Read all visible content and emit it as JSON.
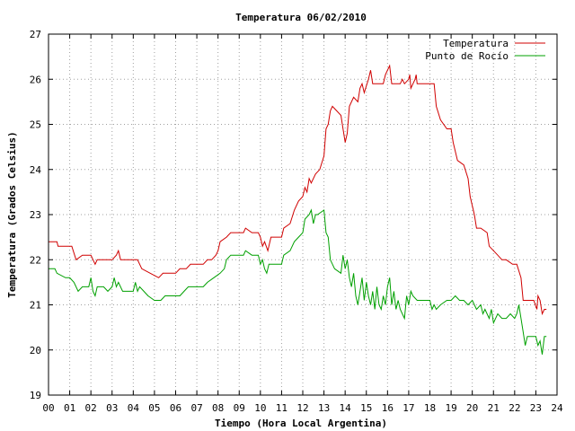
{
  "chart_data": {
    "type": "line",
    "title": "Temperatura 06/02/2010",
    "xlabel": "Tiempo (Hora Local Argentina)",
    "ylabel": "Temperatura (Grados Celsius)",
    "xlim": [
      0,
      24
    ],
    "ylim": [
      19,
      27
    ],
    "x_ticks": [
      "00",
      "01",
      "02",
      "03",
      "04",
      "05",
      "06",
      "07",
      "08",
      "09",
      "10",
      "11",
      "12",
      "13",
      "14",
      "15",
      "16",
      "17",
      "18",
      "19",
      "20",
      "21",
      "22",
      "23",
      "24"
    ],
    "y_ticks": [
      "19",
      "20",
      "21",
      "22",
      "23",
      "24",
      "25",
      "26",
      "27"
    ],
    "grid": true,
    "legend_position": "top-right",
    "series": [
      {
        "name": "Temperatura",
        "color": "#d00000",
        "points": [
          [
            0,
            22.4
          ],
          [
            0.4,
            22.4
          ],
          [
            0.45,
            22.3
          ],
          [
            1.1,
            22.3
          ],
          [
            1.3,
            22.0
          ],
          [
            1.6,
            22.1
          ],
          [
            2.0,
            22.1
          ],
          [
            2.2,
            21.9
          ],
          [
            2.3,
            22.0
          ],
          [
            3.0,
            22.0
          ],
          [
            3.2,
            22.1
          ],
          [
            3.3,
            22.2
          ],
          [
            3.4,
            22.0
          ],
          [
            4.2,
            22.0
          ],
          [
            4.4,
            21.8
          ],
          [
            4.8,
            21.7
          ],
          [
            5.2,
            21.6
          ],
          [
            5.4,
            21.7
          ],
          [
            6.0,
            21.7
          ],
          [
            6.2,
            21.8
          ],
          [
            6.5,
            21.8
          ],
          [
            6.7,
            21.9
          ],
          [
            7.3,
            21.9
          ],
          [
            7.5,
            22.0
          ],
          [
            7.7,
            22.0
          ],
          [
            7.9,
            22.1
          ],
          [
            8.0,
            22.2
          ],
          [
            8.1,
            22.4
          ],
          [
            8.4,
            22.5
          ],
          [
            8.6,
            22.6
          ],
          [
            9.2,
            22.6
          ],
          [
            9.3,
            22.7
          ],
          [
            9.6,
            22.6
          ],
          [
            9.9,
            22.6
          ],
          [
            10.0,
            22.5
          ],
          [
            10.1,
            22.3
          ],
          [
            10.2,
            22.4
          ],
          [
            10.35,
            22.2
          ],
          [
            10.5,
            22.5
          ],
          [
            11.0,
            22.5
          ],
          [
            11.1,
            22.7
          ],
          [
            11.4,
            22.8
          ],
          [
            11.6,
            23.1
          ],
          [
            11.8,
            23.3
          ],
          [
            12.0,
            23.4
          ],
          [
            12.1,
            23.6
          ],
          [
            12.2,
            23.5
          ],
          [
            12.3,
            23.8
          ],
          [
            12.4,
            23.7
          ],
          [
            12.6,
            23.9
          ],
          [
            12.8,
            24.0
          ],
          [
            13.0,
            24.3
          ],
          [
            13.1,
            24.9
          ],
          [
            13.2,
            25.0
          ],
          [
            13.3,
            25.3
          ],
          [
            13.4,
            25.4
          ],
          [
            13.6,
            25.3
          ],
          [
            13.8,
            25.2
          ],
          [
            13.9,
            24.9
          ],
          [
            14.0,
            24.6
          ],
          [
            14.1,
            24.8
          ],
          [
            14.2,
            25.4
          ],
          [
            14.4,
            25.6
          ],
          [
            14.6,
            25.5
          ],
          [
            14.7,
            25.8
          ],
          [
            14.8,
            25.9
          ],
          [
            14.9,
            25.7
          ],
          [
            15.1,
            26.0
          ],
          [
            15.2,
            26.2
          ],
          [
            15.3,
            25.9
          ],
          [
            15.8,
            25.9
          ],
          [
            15.9,
            26.1
          ],
          [
            16.0,
            26.2
          ],
          [
            16.1,
            26.3
          ],
          [
            16.2,
            25.9
          ],
          [
            16.6,
            25.9
          ],
          [
            16.7,
            26.0
          ],
          [
            16.8,
            25.9
          ],
          [
            17.0,
            26.0
          ],
          [
            17.05,
            26.1
          ],
          [
            17.1,
            25.8
          ],
          [
            17.3,
            26.0
          ],
          [
            17.35,
            26.1
          ],
          [
            17.4,
            25.9
          ],
          [
            18.2,
            25.9
          ],
          [
            18.3,
            25.4
          ],
          [
            18.5,
            25.1
          ],
          [
            18.8,
            24.9
          ],
          [
            19.0,
            24.9
          ],
          [
            19.1,
            24.6
          ],
          [
            19.3,
            24.2
          ],
          [
            19.6,
            24.1
          ],
          [
            19.8,
            23.8
          ],
          [
            19.9,
            23.4
          ],
          [
            20.1,
            23.0
          ],
          [
            20.2,
            22.7
          ],
          [
            20.4,
            22.7
          ],
          [
            20.7,
            22.6
          ],
          [
            20.8,
            22.3
          ],
          [
            21.0,
            22.2
          ],
          [
            21.2,
            22.1
          ],
          [
            21.4,
            22.0
          ],
          [
            21.6,
            22.0
          ],
          [
            21.9,
            21.9
          ],
          [
            22.1,
            21.9
          ],
          [
            22.3,
            21.6
          ],
          [
            22.4,
            21.1
          ],
          [
            22.9,
            21.1
          ],
          [
            23.05,
            20.9
          ],
          [
            23.1,
            21.2
          ],
          [
            23.2,
            21.1
          ],
          [
            23.3,
            20.8
          ],
          [
            23.4,
            20.9
          ],
          [
            23.5,
            20.9
          ]
        ]
      },
      {
        "name": "Punto de Rocío",
        "color": "#00a000",
        "points": [
          [
            0,
            21.8
          ],
          [
            0.3,
            21.8
          ],
          [
            0.4,
            21.7
          ],
          [
            0.8,
            21.6
          ],
          [
            1.0,
            21.6
          ],
          [
            1.2,
            21.5
          ],
          [
            1.4,
            21.3
          ],
          [
            1.6,
            21.4
          ],
          [
            1.9,
            21.4
          ],
          [
            2.0,
            21.6
          ],
          [
            2.1,
            21.3
          ],
          [
            2.2,
            21.2
          ],
          [
            2.3,
            21.4
          ],
          [
            2.6,
            21.4
          ],
          [
            2.8,
            21.3
          ],
          [
            3.0,
            21.4
          ],
          [
            3.1,
            21.6
          ],
          [
            3.2,
            21.4
          ],
          [
            3.3,
            21.5
          ],
          [
            3.5,
            21.3
          ],
          [
            4.0,
            21.3
          ],
          [
            4.1,
            21.5
          ],
          [
            4.2,
            21.3
          ],
          [
            4.3,
            21.4
          ],
          [
            4.5,
            21.3
          ],
          [
            4.7,
            21.2
          ],
          [
            5.0,
            21.1
          ],
          [
            5.3,
            21.1
          ],
          [
            5.5,
            21.2
          ],
          [
            6.2,
            21.2
          ],
          [
            6.4,
            21.3
          ],
          [
            6.6,
            21.4
          ],
          [
            7.3,
            21.4
          ],
          [
            7.5,
            21.5
          ],
          [
            7.8,
            21.6
          ],
          [
            8.1,
            21.7
          ],
          [
            8.3,
            21.8
          ],
          [
            8.4,
            22.0
          ],
          [
            8.6,
            22.1
          ],
          [
            9.2,
            22.1
          ],
          [
            9.3,
            22.2
          ],
          [
            9.6,
            22.1
          ],
          [
            9.9,
            22.1
          ],
          [
            10.0,
            21.9
          ],
          [
            10.1,
            22.0
          ],
          [
            10.2,
            21.8
          ],
          [
            10.3,
            21.7
          ],
          [
            10.4,
            21.9
          ],
          [
            11.0,
            21.9
          ],
          [
            11.1,
            22.1
          ],
          [
            11.4,
            22.2
          ],
          [
            11.6,
            22.4
          ],
          [
            11.8,
            22.5
          ],
          [
            12.0,
            22.6
          ],
          [
            12.1,
            22.9
          ],
          [
            12.3,
            23.0
          ],
          [
            12.4,
            23.1
          ],
          [
            12.5,
            22.8
          ],
          [
            12.6,
            23.0
          ],
          [
            12.7,
            23.0
          ],
          [
            13.0,
            23.1
          ],
          [
            13.1,
            22.6
          ],
          [
            13.2,
            22.5
          ],
          [
            13.3,
            22.0
          ],
          [
            13.5,
            21.8
          ],
          [
            13.8,
            21.7
          ],
          [
            13.9,
            22.1
          ],
          [
            14.0,
            21.8
          ],
          [
            14.1,
            22.0
          ],
          [
            14.2,
            21.6
          ],
          [
            14.3,
            21.4
          ],
          [
            14.4,
            21.7
          ],
          [
            14.5,
            21.2
          ],
          [
            14.6,
            21.0
          ],
          [
            14.7,
            21.3
          ],
          [
            14.8,
            21.6
          ],
          [
            14.9,
            21.1
          ],
          [
            15.0,
            21.5
          ],
          [
            15.1,
            21.2
          ],
          [
            15.2,
            21.0
          ],
          [
            15.3,
            21.3
          ],
          [
            15.4,
            20.9
          ],
          [
            15.5,
            21.4
          ],
          [
            15.6,
            21.0
          ],
          [
            15.7,
            20.9
          ],
          [
            15.8,
            21.2
          ],
          [
            15.9,
            21.0
          ],
          [
            16.0,
            21.4
          ],
          [
            16.1,
            21.6
          ],
          [
            16.2,
            21.0
          ],
          [
            16.3,
            21.3
          ],
          [
            16.4,
            20.9
          ],
          [
            16.5,
            21.1
          ],
          [
            16.6,
            20.9
          ],
          [
            16.7,
            20.8
          ],
          [
            16.8,
            20.7
          ],
          [
            16.9,
            21.2
          ],
          [
            17.0,
            21.0
          ],
          [
            17.1,
            21.3
          ],
          [
            17.2,
            21.2
          ],
          [
            17.4,
            21.1
          ],
          [
            17.6,
            21.1
          ],
          [
            17.8,
            21.1
          ],
          [
            18.0,
            21.1
          ],
          [
            18.1,
            20.9
          ],
          [
            18.2,
            21.0
          ],
          [
            18.3,
            20.9
          ],
          [
            18.5,
            21.0
          ],
          [
            18.8,
            21.1
          ],
          [
            19.0,
            21.1
          ],
          [
            19.2,
            21.2
          ],
          [
            19.4,
            21.1
          ],
          [
            19.6,
            21.1
          ],
          [
            19.8,
            21.0
          ],
          [
            20.0,
            21.1
          ],
          [
            20.2,
            20.9
          ],
          [
            20.4,
            21.0
          ],
          [
            20.5,
            20.8
          ],
          [
            20.6,
            20.9
          ],
          [
            20.8,
            20.7
          ],
          [
            20.9,
            20.9
          ],
          [
            21.0,
            20.6
          ],
          [
            21.2,
            20.8
          ],
          [
            21.4,
            20.7
          ],
          [
            21.6,
            20.7
          ],
          [
            21.8,
            20.8
          ],
          [
            22.0,
            20.7
          ],
          [
            22.1,
            20.8
          ],
          [
            22.2,
            21.0
          ],
          [
            22.3,
            20.7
          ],
          [
            22.4,
            20.4
          ],
          [
            22.5,
            20.1
          ],
          [
            22.6,
            20.3
          ],
          [
            23.0,
            20.3
          ],
          [
            23.1,
            20.1
          ],
          [
            23.2,
            20.2
          ],
          [
            23.3,
            19.9
          ],
          [
            23.4,
            20.3
          ],
          [
            23.5,
            20.3
          ]
        ]
      }
    ]
  }
}
